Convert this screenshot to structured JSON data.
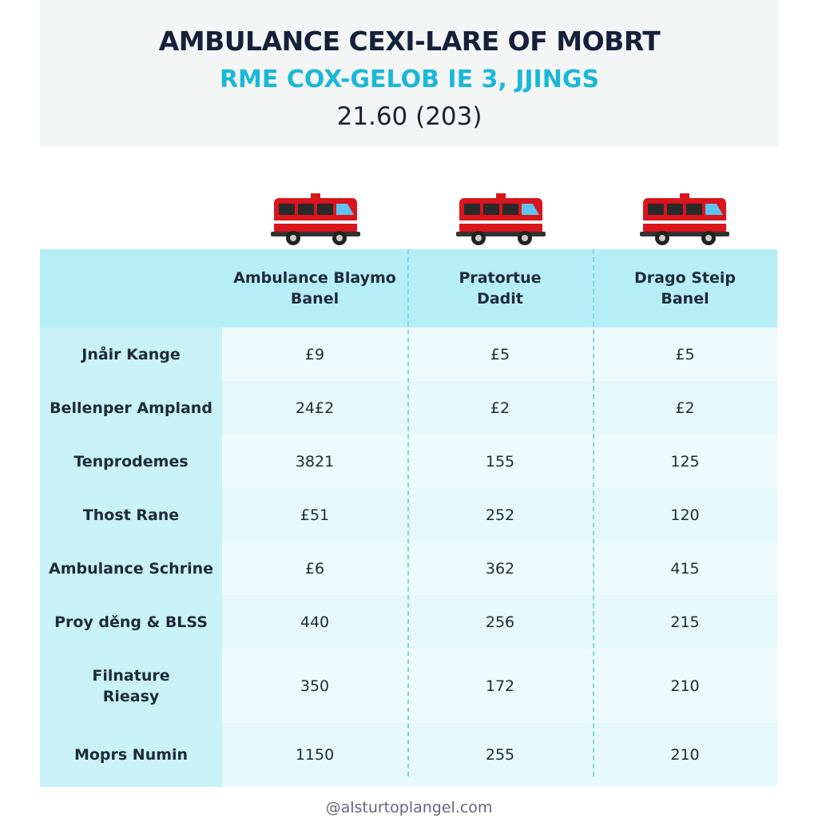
{
  "header": {
    "title": "AMBULANCE CEXI-LARE OF MOBRT",
    "subtitle": "RME COX-GELOB IE 3, JJINGS",
    "date": "21.60 (203)"
  },
  "table": {
    "columns": [
      [
        "Ambulance Blaymo",
        "Banel"
      ],
      [
        "Pratortue",
        "Dadit"
      ],
      [
        "Drago Steip",
        "Banel"
      ]
    ],
    "rows": [
      {
        "label": [
          "Jnåir Kange"
        ],
        "cells": [
          "£9",
          "£5",
          "£5"
        ]
      },
      {
        "label": [
          "Bellenper Ampland"
        ],
        "cells": [
          "24£2",
          "£2",
          "£2"
        ]
      },
      {
        "label": [
          "Tenprodemes"
        ],
        "cells": [
          "3821",
          "155",
          "125"
        ]
      },
      {
        "label": [
          "Thost Rane"
        ],
        "cells": [
          "£51",
          "252",
          "120"
        ]
      },
      {
        "label": [
          "Ambulance Schrine"
        ],
        "cells": [
          "£6",
          "362",
          "415"
        ]
      },
      {
        "label": [
          "Proy děng & BLSS"
        ],
        "cells": [
          "440",
          "256",
          "215"
        ]
      },
      {
        "label": [
          "Filnature",
          "Rieasy"
        ],
        "cells": [
          "350",
          "172",
          "210"
        ]
      },
      {
        "label": [
          "Moprs Numin"
        ],
        "cells": [
          "1150",
          "255",
          "210"
        ]
      }
    ]
  },
  "footer": "@alsturtoplangel.com"
}
